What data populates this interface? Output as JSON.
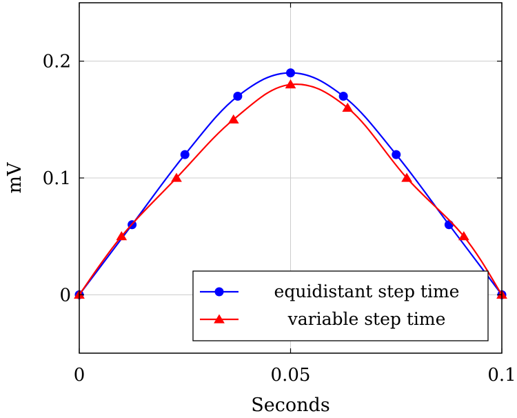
{
  "chart_data": {
    "type": "line",
    "xlabel": "Seconds",
    "ylabel": "mV",
    "xlim": [
      0,
      0.1
    ],
    "ylim": [
      -0.05,
      0.25
    ],
    "x_ticks": [
      "0",
      "0.05",
      "0.1"
    ],
    "y_ticks": [
      "0",
      "0.1",
      "0.2"
    ],
    "grid": true,
    "legend_position": "bottom-right",
    "series": [
      {
        "name": "equidistant step time",
        "color": "#0000ff",
        "marker": "circle",
        "x": [
          0,
          0.0125,
          0.025,
          0.0375,
          0.05,
          0.0625,
          0.075,
          0.0875,
          0.1
        ],
        "y": [
          0,
          0.06,
          0.12,
          0.17,
          0.19,
          0.17,
          0.12,
          0.06,
          0
        ]
      },
      {
        "name": "variable step time",
        "color": "#ff0000",
        "marker": "triangle",
        "x": [
          0,
          0.01,
          0.023,
          0.0365,
          0.05,
          0.0635,
          0.0775,
          0.091,
          0.1
        ],
        "y": [
          0,
          0.05,
          0.1,
          0.15,
          0.18,
          0.16,
          0.1,
          0.05,
          0
        ]
      }
    ]
  }
}
